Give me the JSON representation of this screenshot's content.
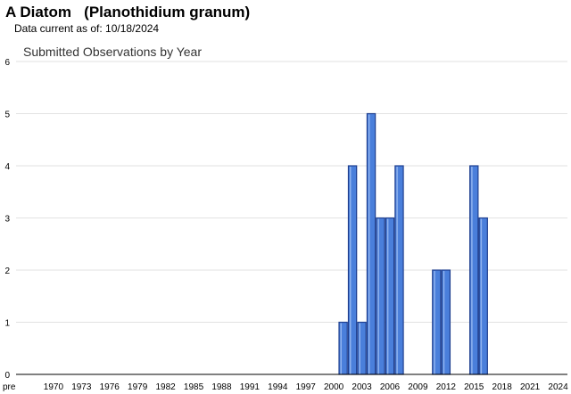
{
  "header": {
    "title": "A Diatom   (Planothidium granum)",
    "data_current": "Data current as of: 10/18/2024"
  },
  "chart_data": {
    "type": "bar",
    "title": "Submitted Observations by Year",
    "xlabel": "",
    "ylabel": "",
    "ylim": [
      0,
      6
    ],
    "yticks": [
      0,
      1,
      2,
      3,
      4,
      5,
      6
    ],
    "grid": true,
    "x_tick_labels": [
      "pre",
      "1970",
      "1973",
      "1976",
      "1979",
      "1982",
      "1985",
      "1988",
      "1991",
      "1994",
      "1997",
      "2000",
      "2003",
      "2006",
      "2009",
      "2012",
      "2015",
      "2018",
      "2021",
      "2024"
    ],
    "x_range": [
      1966,
      2025
    ],
    "bar_color": "#4a7fdb",
    "bar_edge_color": "#1f3f8f",
    "series": [
      {
        "values": [
          {
            "year": 2001,
            "value": 1
          },
          {
            "year": 2002,
            "value": 4
          },
          {
            "year": 2003,
            "value": 1
          },
          {
            "year": 2004,
            "value": 5
          },
          {
            "year": 2005,
            "value": 3
          },
          {
            "year": 2006,
            "value": 3
          },
          {
            "year": 2007,
            "value": 4
          },
          {
            "year": 2011,
            "value": 2
          },
          {
            "year": 2012,
            "value": 2
          },
          {
            "year": 2015,
            "value": 4
          },
          {
            "year": 2016,
            "value": 3
          }
        ]
      }
    ]
  }
}
